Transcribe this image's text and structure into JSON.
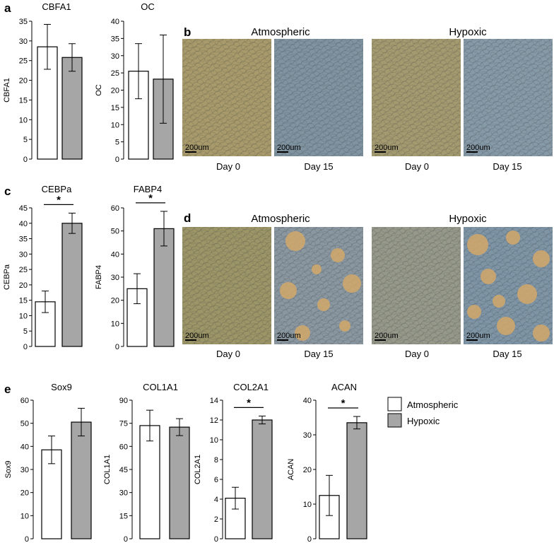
{
  "figure": {
    "panels": {
      "a": "a",
      "b": "b",
      "c": "c",
      "d": "d",
      "e": "e"
    },
    "conditions": {
      "atmospheric": "Atmospheric",
      "hypoxic": "Hypoxic"
    },
    "days": {
      "day0": "Day 0",
      "day15": "Day 15"
    },
    "scale_bar": "200um",
    "legend": [
      {
        "label": "Atmospheric",
        "color": "#ffffff"
      },
      {
        "label": "Hypoxic",
        "color": "#a6a6a6"
      }
    ],
    "significance_marker": "*"
  },
  "chart_data": [
    {
      "type": "bar",
      "title": "CBFA1",
      "ylabel": "CBFA1",
      "ylim": [
        0,
        35
      ],
      "yticks": [
        0,
        5,
        10,
        15,
        20,
        25,
        30,
        35
      ],
      "categories": [
        "Atmospheric",
        "Hypoxic"
      ],
      "values": [
        28.5,
        25.8
      ],
      "errors": [
        5.7,
        3.5
      ],
      "significant": false
    },
    {
      "type": "bar",
      "title": "OC",
      "ylabel": "OC",
      "ylim": [
        0,
        40
      ],
      "yticks": [
        0,
        5,
        10,
        15,
        20,
        25,
        30,
        35,
        40
      ],
      "categories": [
        "Atmospheric",
        "Hypoxic"
      ],
      "values": [
        25.5,
        23.2
      ],
      "errors": [
        8,
        12.8
      ],
      "significant": false
    },
    {
      "type": "bar",
      "title": "CEBPa",
      "ylabel": "CEBPa",
      "ylim": [
        0,
        45
      ],
      "yticks": [
        0,
        5,
        10,
        15,
        20,
        25,
        30,
        35,
        40,
        45
      ],
      "categories": [
        "Atmospheric",
        "Hypoxic"
      ],
      "values": [
        14.5,
        40
      ],
      "errors": [
        3.5,
        3.3
      ],
      "significant": true
    },
    {
      "type": "bar",
      "title": "FABP4",
      "ylabel": "FABP4",
      "ylim": [
        0,
        60
      ],
      "yticks": [
        0,
        10,
        20,
        30,
        40,
        50,
        60
      ],
      "categories": [
        "Atmospheric",
        "Hypoxic"
      ],
      "values": [
        25,
        51
      ],
      "errors": [
        6.5,
        7.5
      ],
      "significant": true
    },
    {
      "type": "bar",
      "title": "Sox9",
      "ylabel": "Sox9",
      "ylim": [
        0,
        60
      ],
      "yticks": [
        0,
        10,
        20,
        30,
        40,
        50,
        60
      ],
      "categories": [
        "Atmospheric",
        "Hypoxic"
      ],
      "values": [
        38.5,
        50.5
      ],
      "errors": [
        6,
        6
      ],
      "significant": false
    },
    {
      "type": "bar",
      "title": "COL1A1",
      "ylabel": "COL1A1",
      "ylim": [
        0,
        90
      ],
      "yticks": [
        0,
        15,
        30,
        45,
        60,
        75,
        90
      ],
      "categories": [
        "Atmospheric",
        "Hypoxic"
      ],
      "values": [
        73.5,
        72.5
      ],
      "errors": [
        10,
        5.5
      ],
      "significant": false
    },
    {
      "type": "bar",
      "title": "COL2A1",
      "ylabel": "COL2A1",
      "ylim": [
        0,
        14
      ],
      "yticks": [
        0,
        2,
        4,
        6,
        8,
        10,
        12,
        14
      ],
      "categories": [
        "Atmospheric",
        "Hypoxic"
      ],
      "values": [
        4.1,
        12
      ],
      "errors": [
        1.1,
        0.4
      ],
      "significant": true
    },
    {
      "type": "bar",
      "title": "ACAN",
      "ylabel": "ACAN",
      "ylim": [
        0,
        40
      ],
      "yticks": [
        0,
        10,
        20,
        30,
        40
      ],
      "categories": [
        "Atmospheric",
        "Hypoxic"
      ],
      "values": [
        12.5,
        33.5
      ],
      "errors": [
        5.8,
        1.8
      ],
      "significant": true
    }
  ],
  "micrographs": [
    {
      "panel": "b",
      "condition": "atmospheric",
      "day": "day0",
      "base": "#a89a6b",
      "spots": false
    },
    {
      "panel": "b",
      "condition": "atmospheric",
      "day": "day15",
      "base": "#7f93a0",
      "spots": false
    },
    {
      "panel": "b",
      "condition": "hypoxic",
      "day": "day0",
      "base": "#a49a70",
      "spots": false
    },
    {
      "panel": "b",
      "condition": "hypoxic",
      "day": "day15",
      "base": "#8699a6",
      "spots": false
    },
    {
      "panel": "d",
      "condition": "atmospheric",
      "day": "day0",
      "base": "#9c9568",
      "spots": false
    },
    {
      "panel": "d",
      "condition": "atmospheric",
      "day": "day15",
      "base": "#8a97a0",
      "spots": true
    },
    {
      "panel": "d",
      "condition": "hypoxic",
      "day": "day0",
      "base": "#96998a",
      "spots": false
    },
    {
      "panel": "d",
      "condition": "hypoxic",
      "day": "day15",
      "base": "#7f95a6",
      "spots": true
    }
  ]
}
